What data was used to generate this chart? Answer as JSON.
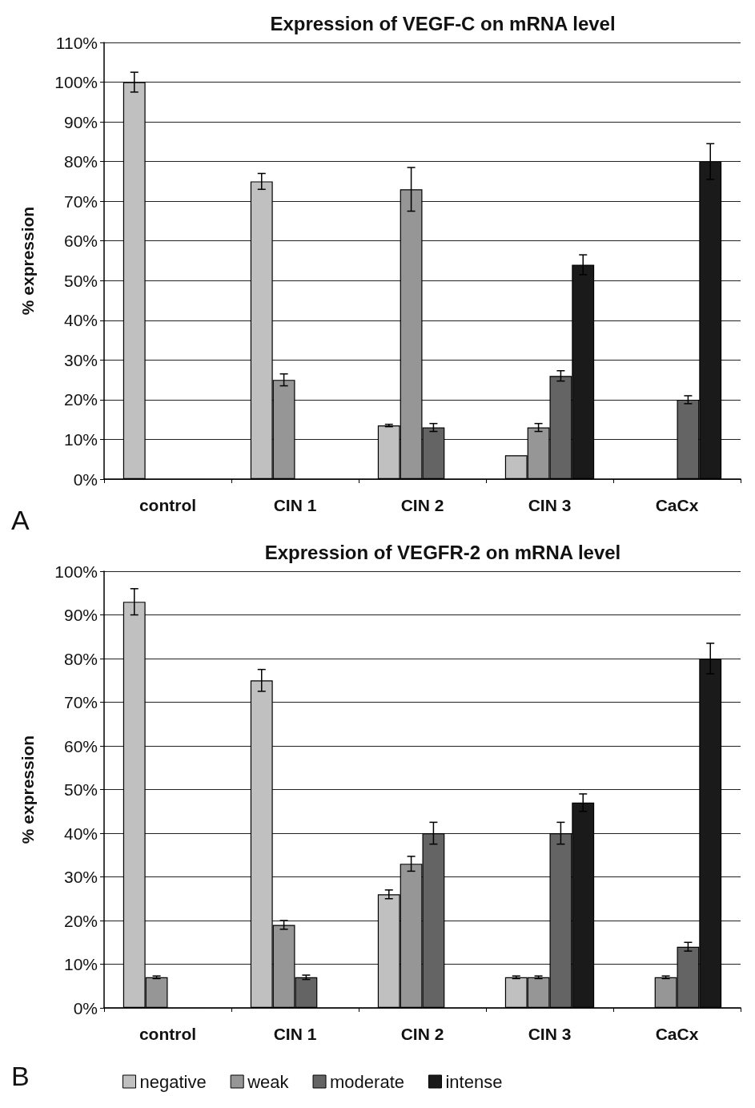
{
  "chart_data": [
    {
      "type": "bar",
      "title": "Expression of VEGF-C on mRNA level",
      "ylabel": "% expression",
      "categories": [
        "control",
        "CIN 1",
        "CIN 2",
        "CIN 3",
        "CaCx"
      ],
      "series": [
        {
          "color": "#c0c0c0",
          "values": [
            100,
            75,
            13.5,
            6,
            null
          ],
          "errors": [
            2.5,
            2,
            0.3,
            null,
            null
          ]
        },
        {
          "color": "#969696",
          "values": [
            null,
            25,
            73,
            13,
            null
          ],
          "errors": [
            null,
            1.5,
            5.5,
            1,
            null
          ]
        },
        {
          "color": "#646464",
          "values": [
            null,
            null,
            13,
            26,
            20
          ],
          "errors": [
            null,
            null,
            1,
            1.3,
            1
          ]
        },
        {
          "color": "#1a1a1a",
          "values": [
            null,
            null,
            null,
            54,
            80
          ],
          "errors": [
            null,
            null,
            null,
            2.5,
            4.5
          ]
        }
      ],
      "ylim": [
        0,
        110
      ],
      "yticks": [
        {
          "value": 0,
          "label": "0%"
        },
        {
          "value": 10,
          "label": "10%"
        },
        {
          "value": 20,
          "label": "20%"
        },
        {
          "value": 30,
          "label": "30%"
        },
        {
          "value": 40,
          "label": "40%"
        },
        {
          "value": 50,
          "label": "50%"
        },
        {
          "value": 60,
          "label": "60%"
        },
        {
          "value": 70,
          "label": "70%"
        },
        {
          "value": 80,
          "label": "80%"
        },
        {
          "value": 90,
          "label": "90%"
        },
        {
          "value": 100,
          "label": "100%"
        },
        {
          "value": 110,
          "label": "110%"
        }
      ],
      "grid": "y",
      "annotations": [
        "A"
      ]
    },
    {
      "type": "bar",
      "title": "Expression of VEGFR-2 on mRNA level",
      "ylabel": "% expression",
      "categories": [
        "control",
        "CIN 1",
        "CIN 2",
        "CIN 3",
        "CaCx"
      ],
      "series": [
        {
          "name": "negative",
          "color": "#c0c0c0",
          "values": [
            93,
            75,
            26,
            7,
            null
          ],
          "errors": [
            3,
            2.5,
            1,
            0.3,
            null
          ]
        },
        {
          "name": "weak",
          "color": "#969696",
          "values": [
            7,
            19,
            33,
            7,
            7
          ],
          "errors": [
            0.3,
            1,
            1.7,
            0.3,
            0.3
          ]
        },
        {
          "name": "moderate",
          "color": "#646464",
          "values": [
            null,
            7,
            40,
            40,
            14
          ],
          "errors": [
            null,
            0.5,
            2.5,
            2.5,
            1
          ]
        },
        {
          "name": "intense",
          "color": "#1a1a1a",
          "values": [
            null,
            null,
            null,
            47,
            80
          ],
          "errors": [
            null,
            null,
            null,
            2,
            3.5
          ]
        }
      ],
      "ylim": [
        0,
        100
      ],
      "yticks": [
        {
          "value": 0,
          "label": "0%"
        },
        {
          "value": 10,
          "label": "10%"
        },
        {
          "value": 20,
          "label": "20%"
        },
        {
          "value": 30,
          "label": "30%"
        },
        {
          "value": 40,
          "label": "40%"
        },
        {
          "value": 50,
          "label": "50%"
        },
        {
          "value": 60,
          "label": "60%"
        },
        {
          "value": 70,
          "label": "70%"
        },
        {
          "value": 80,
          "label": "80%"
        },
        {
          "value": 90,
          "label": "90%"
        },
        {
          "value": 100,
          "label": "100%"
        }
      ],
      "grid": "y",
      "legend": "bottom",
      "annotations": [
        "B"
      ]
    }
  ]
}
